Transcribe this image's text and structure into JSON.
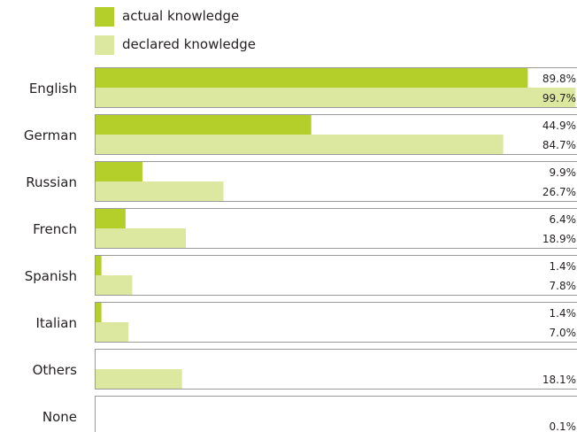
{
  "colors": {
    "actual": "#b5cf2a",
    "declared": "#dce8a0",
    "frame": "#9a9a9a",
    "text": "#231f20"
  },
  "chart_data": {
    "type": "bar",
    "orientation": "horizontal",
    "title": "",
    "xlabel": "",
    "ylabel": "",
    "xlim": [
      0,
      100
    ],
    "unit": "%",
    "legend_position": "top-left",
    "categories": [
      "English",
      "German",
      "Russian",
      "French",
      "Spanish",
      "Italian",
      "Others",
      "None"
    ],
    "series": [
      {
        "name": "actual knowledge",
        "color": "#b5cf2a",
        "values": [
          89.8,
          44.9,
          9.9,
          6.4,
          1.4,
          1.4,
          null,
          null
        ]
      },
      {
        "name": "declared knowledge",
        "color": "#dce8a0",
        "values": [
          99.7,
          84.7,
          26.7,
          18.9,
          7.8,
          7.0,
          18.1,
          0.1
        ]
      }
    ],
    "value_labels": [
      [
        "89.8%",
        "99.7%"
      ],
      [
        "44.9%",
        "84.7%"
      ],
      [
        "9.9%",
        "26.7%"
      ],
      [
        "6.4%",
        "18.9%"
      ],
      [
        "1.4%",
        "7.8%"
      ],
      [
        "1.4%",
        "7.0%"
      ],
      [
        "",
        "18.1%"
      ],
      [
        "",
        "0.1%"
      ]
    ]
  }
}
